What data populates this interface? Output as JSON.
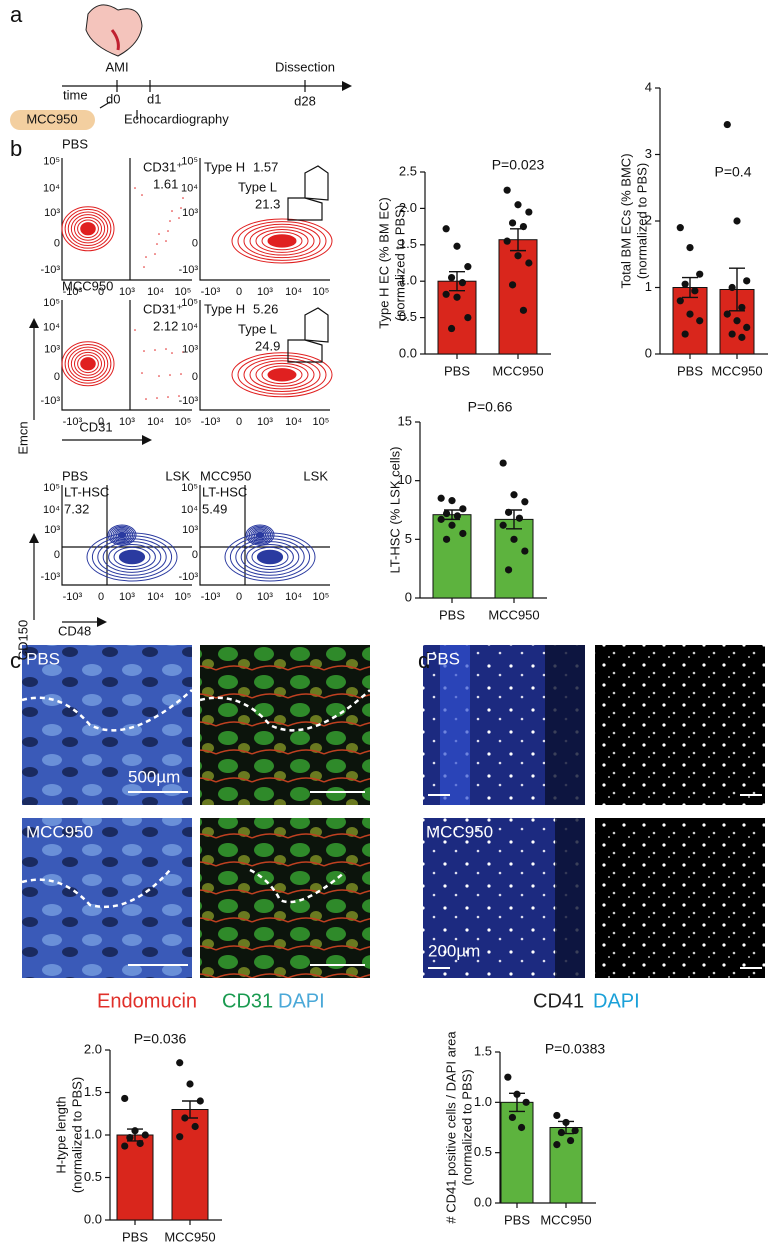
{
  "timeline": {
    "panel": "a",
    "event": "AMI",
    "end": "Dissection",
    "axis": "time",
    "days": [
      "d0",
      "d1",
      "d28"
    ],
    "treatment": "MCC950",
    "measure": "Echocardiography"
  },
  "flow": {
    "panel": "b",
    "ec_plots": [
      {
        "group": "PBS",
        "gate": "CD31⁺",
        "gate_value": 1.61,
        "type_h": "Type H",
        "type_h_value": 1.57,
        "type_l": "Type L",
        "type_l_value": 21.3
      },
      {
        "group": "MCC950",
        "gate": "CD31⁺",
        "gate_value": 2.12,
        "type_h": "Type H",
        "type_h_value": 5.26,
        "type_l": "Type L",
        "type_l_value": 24.9
      }
    ],
    "ec_ylabel": "Emcn",
    "ec_xlabel": "CD31",
    "hsc_plots": [
      {
        "group": "PBS",
        "gate_label": "LSK",
        "population": "LT-HSC",
        "value": 7.32
      },
      {
        "group": "MCC950",
        "gate_label": "LSK",
        "population": "LT-HSC",
        "value": 5.49
      }
    ],
    "hsc_ylabel": "CD150",
    "hsc_xlabel": "CD48",
    "axis_ticks": [
      "-10³",
      "0",
      "10³",
      "10⁴",
      "10⁵"
    ]
  },
  "imaging": {
    "c": {
      "panel": "c",
      "groups": [
        "PBS",
        "MCC950"
      ],
      "scale": "500µm",
      "stains": [
        "Endomucin",
        "CD31",
        "DAPI"
      ],
      "stain_colors": [
        "#e0302a",
        "#1a9a50",
        "#4aa8d8"
      ]
    },
    "d": {
      "panel": "d",
      "groups": [
        "PBS",
        "MCC950"
      ],
      "scale": "200µm",
      "stains": [
        "CD41",
        "DAPI"
      ],
      "stain_colors": [
        "#222222",
        "#1aa0d8"
      ]
    }
  },
  "chart_data": [
    {
      "type": "bar",
      "annotation": "P=0.023",
      "ylabel": [
        "Type H EC (% BM EC)",
        "(normalized to PBS)"
      ],
      "categories": [
        "PBS",
        "MCC950"
      ],
      "values": [
        1.0,
        1.57
      ],
      "errors": [
        0.13,
        0.15
      ],
      "color": "#d9261c",
      "points": [
        [
          1.72,
          1.48,
          1.2,
          1.05,
          0.98,
          0.82,
          0.78,
          0.5,
          0.35
        ],
        [
          2.25,
          2.05,
          1.95,
          1.8,
          1.75,
          1.55,
          1.35,
          1.25,
          0.95,
          0.6
        ]
      ],
      "ylim": [
        0,
        2.5
      ],
      "yticks": [
        {
          "value": 0,
          "label": "0.0"
        },
        0.5,
        {
          "value": 1,
          "label": "1.0"
        },
        1.5,
        {
          "value": 2,
          "label": "2.0"
        },
        2.5
      ]
    },
    {
      "type": "bar",
      "annotation": "P=0.4",
      "ylabel": [
        "Total BM ECs (% BMC)",
        "(normalized to PBS)"
      ],
      "categories": [
        "PBS",
        "MCC950"
      ],
      "values": [
        1.0,
        0.97
      ],
      "errors": [
        0.15,
        0.32
      ],
      "color": "#d9261c",
      "points": [
        [
          1.9,
          1.6,
          1.2,
          1.05,
          0.95,
          0.8,
          0.6,
          0.5,
          0.3
        ],
        [
          3.45,
          2.0,
          1.1,
          1.0,
          0.7,
          0.6,
          0.5,
          0.4,
          0.3,
          0.25
        ]
      ],
      "ylim": [
        0,
        4
      ],
      "yticks": [
        0,
        1,
        2,
        3,
        4
      ]
    },
    {
      "type": "bar",
      "annotation": "P=0.66",
      "ylabel": [
        "LT-HSC (% LSK cells)"
      ],
      "categories": [
        "PBS",
        "MCC950"
      ],
      "values": [
        7.1,
        6.7
      ],
      "errors": [
        0.4,
        0.8
      ],
      "color": "#5db33e",
      "points": [
        [
          8.5,
          8.3,
          7.6,
          7.2,
          7.0,
          6.7,
          6.2,
          5.5,
          5.0
        ],
        [
          11.5,
          8.8,
          8.2,
          7.3,
          6.8,
          6.2,
          5.0,
          4.0,
          2.4
        ]
      ],
      "ylim": [
        0,
        15
      ],
      "yticks": [
        0,
        5,
        10,
        15
      ]
    },
    {
      "type": "bar",
      "annotation": "P=0.036",
      "ylabel": [
        "H-type length",
        "(normalized to PBS)"
      ],
      "categories": [
        "PBS",
        "MCC950"
      ],
      "values": [
        1.0,
        1.3
      ],
      "errors": [
        0.07,
        0.1
      ],
      "color": "#d9261c",
      "points": [
        [
          1.43,
          1.05,
          1.0,
          0.97,
          0.9,
          0.87
        ],
        [
          1.85,
          1.6,
          1.4,
          1.2,
          1.1,
          0.98
        ]
      ],
      "ylim": [
        0,
        2
      ],
      "yticks": [
        {
          "value": 0,
          "label": "0.0"
        },
        0.5,
        {
          "value": 1,
          "label": "1.0"
        },
        1.5,
        {
          "value": 2,
          "label": "2.0"
        }
      ]
    },
    {
      "type": "bar",
      "annotation": "P=0.0383",
      "ylabel": [
        "# CD41 positive cells / DAPI area",
        "(normalized to PBS)"
      ],
      "categories": [
        "PBS",
        "MCC950"
      ],
      "values": [
        1.0,
        0.75
      ],
      "errors": [
        0.09,
        0.06
      ],
      "color": "#5db33e",
      "points": [
        [
          1.25,
          1.08,
          1.0,
          0.85,
          0.75
        ],
        [
          0.87,
          0.8,
          0.72,
          0.7,
          0.62,
          0.58
        ]
      ],
      "ylim": [
        0,
        1.5
      ],
      "yticks": [
        {
          "value": 0,
          "label": "0.0"
        },
        0.5,
        {
          "value": 1,
          "label": "1.0"
        },
        1.5
      ]
    }
  ]
}
